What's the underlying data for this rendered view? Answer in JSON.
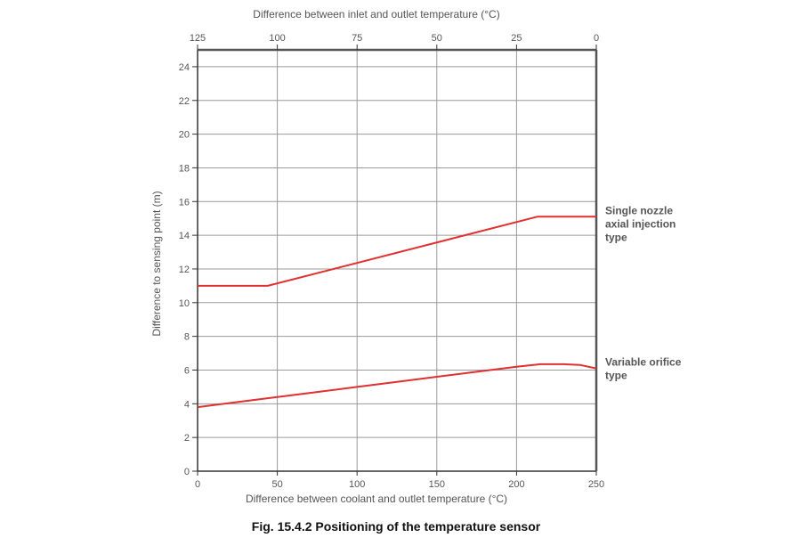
{
  "chart_data": {
    "type": "line",
    "title": "",
    "caption": "Fig. 15.4.2 Positioning of the temperature sensor",
    "xlabel": "Difference between coolant and outlet temperature (°C)",
    "x2label": "Difference between inlet and outlet temperature (°C)",
    "ylabel": "Difference to sensing point (m)",
    "xlim": [
      0,
      250
    ],
    "ylim": [
      0,
      25
    ],
    "x_ticks": [
      0,
      50,
      100,
      150,
      200,
      250
    ],
    "x2_ticks": [
      125,
      100,
      75,
      50,
      25,
      0
    ],
    "y_ticks": [
      0,
      2,
      4,
      6,
      8,
      10,
      12,
      14,
      16,
      18,
      20,
      22,
      24
    ],
    "grid": true,
    "series": [
      {
        "name": "Single nozzle axial injection type",
        "label_lines": [
          "Single nozzle",
          "axial injection",
          "type"
        ],
        "color": "#e03030",
        "x": [
          0,
          44,
          213,
          250
        ],
        "y": [
          11.0,
          11.0,
          15.1,
          15.1
        ]
      },
      {
        "name": "Variable orifice type",
        "label_lines": [
          "Variable orifice",
          "type"
        ],
        "color": "#e03030",
        "x": [
          0,
          25,
          50,
          75,
          100,
          125,
          150,
          175,
          200,
          215,
          230,
          240,
          250
        ],
        "y": [
          3.8,
          4.1,
          4.4,
          4.7,
          5.0,
          5.3,
          5.6,
          5.9,
          6.2,
          6.35,
          6.35,
          6.3,
          6.1
        ]
      }
    ]
  }
}
